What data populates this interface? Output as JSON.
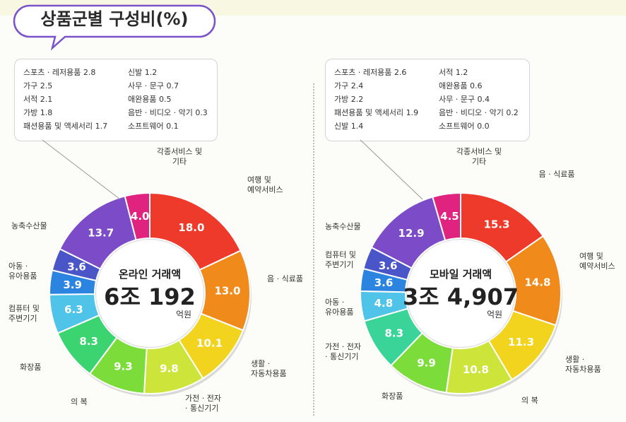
{
  "title": "상품군별 구성비(%)",
  "colors": {
    "food": "#f08a1a",
    "travel": "#ee3a2a",
    "other": "#e0237e",
    "agri": "#7b4bc8",
    "baby": "#4a55c8",
    "computer": "#1e6fd8",
    "kids_computer": "#2b85e0",
    "cyan": "#4fc3e8",
    "mint": "#4cd8b0",
    "green": "#3bd470",
    "lime": "#8ee03a",
    "yellowgreen": "#cde53a",
    "yellow": "#f2d41e"
  },
  "chart_data": [
    {
      "type": "pie",
      "title": "온라인 거래액",
      "center": {
        "title": "온라인 거래액",
        "amount": "6조 192",
        "unit": "억원"
      },
      "slices": [
        {
          "label": "여행 및 예약서비스",
          "value": 18.0,
          "value_label": "18.0",
          "color": "#ee3a2a"
        },
        {
          "label": "음 · 식료품",
          "value": 13.0,
          "value_label": "13.0",
          "color": "#f08a1a"
        },
        {
          "label": "생활 · 자동차용품",
          "value": 10.1,
          "value_label": "10.1",
          "color": "#f2d41e"
        },
        {
          "label": "가전 · 전자 · 통신기기",
          "value": 9.8,
          "value_label": "9.8",
          "color": "#cde53a"
        },
        {
          "label": "의 복",
          "value": 9.3,
          "value_label": "9.3",
          "color": "#7bdc3a"
        },
        {
          "label": "화장품",
          "value": 8.3,
          "value_label": "8.3",
          "color": "#3bd470"
        },
        {
          "label": "컴퓨터 및 주변기기",
          "value": 6.3,
          "value_label": "6.3",
          "color": "#4fc3e8"
        },
        {
          "label": "아동 · 유아용품",
          "value": 3.9,
          "value_label": "3.9",
          "color": "#2b85e0"
        },
        {
          "label": "",
          "value": 3.6,
          "value_label": "3.6",
          "color": "#4a55c8"
        },
        {
          "label": "농축수산물",
          "value": 13.7,
          "value_label": "13.7",
          "color": "#7b4bc8"
        },
        {
          "label": "각종서비스 및 기타",
          "value": 4.0,
          "value_label": "4.0",
          "color": "#e0237e"
        }
      ],
      "legend": [
        "스포츠 · 레저용품 2.8",
        "가구 2.5",
        "서적 2.1",
        "가방 1.8",
        "패션용품 및 액세서리 1.7",
        "신발 1.2",
        "사무 · 문구 0.7",
        "애완용품 0.5",
        "음반 · 비디오 · 악기 0.3",
        "소프트웨어 0.1"
      ]
    },
    {
      "type": "pie",
      "title": "모바일 거래액",
      "center": {
        "title": "모바일 거래액",
        "amount": "3조 4,907",
        "unit": "억원"
      },
      "slices": [
        {
          "label": "음 · 식료품",
          "value": 15.3,
          "value_label": "15.3",
          "color": "#ee3a2a"
        },
        {
          "label": "여행 및 예약서비스",
          "value": 14.8,
          "value_label": "14.8",
          "color": "#f08a1a"
        },
        {
          "label": "생활 · 자동차용품",
          "value": 11.3,
          "value_label": "11.3",
          "color": "#f2d41e"
        },
        {
          "label": "의 복",
          "value": 10.8,
          "value_label": "10.8",
          "color": "#cde53a"
        },
        {
          "label": "화장품",
          "value": 9.9,
          "value_label": "9.9",
          "color": "#7bdc3a"
        },
        {
          "label": "가전 · 전자 · 통신기기",
          "value": 8.3,
          "value_label": "8.3",
          "color": "#3bd498"
        },
        {
          "label": "아동 · 유아용품",
          "value": 4.8,
          "value_label": "4.8",
          "color": "#4fc3e8"
        },
        {
          "label": "",
          "value": 3.6,
          "value_label": "3.6",
          "color": "#2b85e0"
        },
        {
          "label": "컴퓨터 및 주변기기",
          "value": 3.6,
          "value_label": "3.6",
          "color": "#4a55c8"
        },
        {
          "label": "농축수산물",
          "value": 12.9,
          "value_label": "12.9",
          "color": "#7b4bc8"
        },
        {
          "label": "각종서비스 및 기타",
          "value": 4.5,
          "value_label": "4.5",
          "color": "#e0237e"
        }
      ],
      "legend": [
        "스포츠 · 레저용품 2.6",
        "가구 2.4",
        "가방 2.2",
        "패션용품 및 액세서리 1.9",
        "신발 1.4",
        "서적 1.2",
        "애완용품 0.6",
        "사무 · 문구 0.4",
        "음반 · 비디오 · 악기 0.2",
        "소프트웨어 0.0"
      ]
    }
  ]
}
